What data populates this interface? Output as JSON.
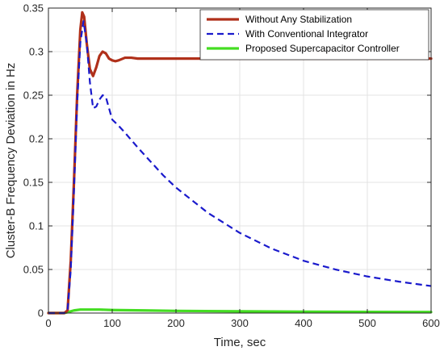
{
  "chart_data": {
    "type": "line",
    "xlabel": "Time, sec",
    "ylabel": "Cluster-B Frequency Deviation in Hz",
    "xlim": [
      0,
      600
    ],
    "ylim": [
      0,
      0.35
    ],
    "xticks": [
      0,
      100,
      200,
      300,
      400,
      500,
      600
    ],
    "yticks": [
      0,
      0.05,
      0.1,
      0.15,
      0.2,
      0.25,
      0.3,
      0.35
    ],
    "xtick_labels": [
      "0",
      "100",
      "200",
      "300",
      "400",
      "500",
      "600"
    ],
    "ytick_labels": [
      "0",
      "0.05",
      "0.1",
      "0.15",
      "0.2",
      "0.25",
      "0.3",
      "0.35"
    ],
    "grid": true,
    "legend_position": "top-right",
    "series": [
      {
        "name": "Without Any Stabilization",
        "color": "#b0301a",
        "dash": "solid",
        "x": [
          0,
          25,
          30,
          35,
          40,
          45,
          50,
          53,
          56,
          60,
          65,
          70,
          75,
          80,
          85,
          90,
          95,
          100,
          105,
          110,
          120,
          130,
          140,
          160,
          200,
          300,
          400,
          500,
          600
        ],
        "y": [
          0,
          0,
          0.003,
          0.06,
          0.15,
          0.25,
          0.325,
          0.345,
          0.34,
          0.31,
          0.28,
          0.272,
          0.282,
          0.295,
          0.3,
          0.298,
          0.292,
          0.29,
          0.289,
          0.29,
          0.293,
          0.293,
          0.292,
          0.292,
          0.292,
          0.292,
          0.292,
          0.292,
          0.292
        ]
      },
      {
        "name": "With Conventional Integrator",
        "color": "#1a1acc",
        "dash": "dashed",
        "x": [
          0,
          25,
          30,
          35,
          40,
          45,
          50,
          55,
          60,
          65,
          70,
          75,
          80,
          85,
          90,
          95,
          100,
          110,
          120,
          140,
          160,
          180,
          200,
          250,
          300,
          350,
          400,
          450,
          500,
          550,
          600
        ],
        "y": [
          0,
          0,
          0.003,
          0.05,
          0.14,
          0.24,
          0.31,
          0.335,
          0.31,
          0.265,
          0.235,
          0.237,
          0.245,
          0.25,
          0.248,
          0.235,
          0.222,
          0.215,
          0.207,
          0.19,
          0.174,
          0.158,
          0.144,
          0.115,
          0.092,
          0.074,
          0.06,
          0.05,
          0.042,
          0.036,
          0.031
        ]
      },
      {
        "name": "Proposed Supercapacitor Controller",
        "color": "#44dd22",
        "dash": "solid",
        "x": [
          0,
          25,
          30,
          40,
          50,
          60,
          80,
          100,
          150,
          200,
          300,
          400,
          500,
          600
        ],
        "y": [
          0,
          0,
          0.001,
          0.003,
          0.004,
          0.004,
          0.004,
          0.0035,
          0.003,
          0.0025,
          0.002,
          0.0015,
          0.0013,
          0.0012
        ]
      }
    ]
  }
}
